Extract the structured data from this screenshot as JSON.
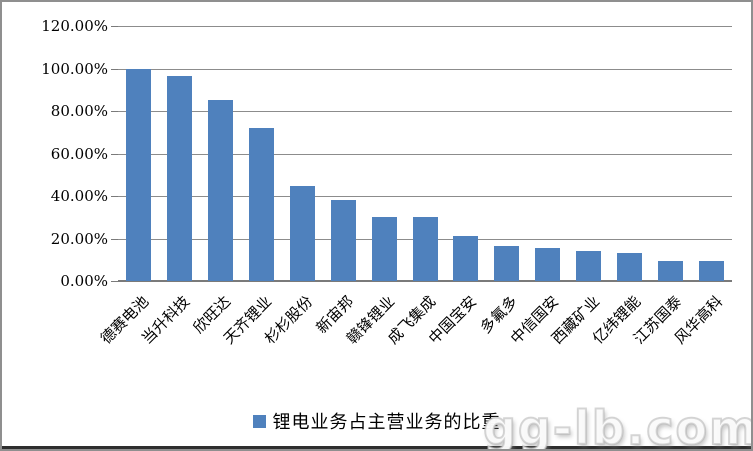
{
  "chart_data": {
    "type": "bar",
    "title": "",
    "categories": [
      "德赛电池",
      "当升科技",
      "欣旺达",
      "天齐锂业",
      "杉杉股份",
      "新宙邦",
      "赣锋锂业",
      "成飞集成",
      "中国宝安",
      "多氟多",
      "中信国安",
      "西藏矿业",
      "亿纬锂能",
      "江苏国泰",
      "风华高科"
    ],
    "values": [
      100.0,
      96.5,
      85.0,
      72.0,
      44.5,
      38.0,
      30.0,
      30.0,
      21.0,
      16.5,
      15.5,
      14.0,
      13.0,
      9.6,
      9.6
    ],
    "series_name": "锂电业务占主营业务的比重",
    "xlabel": "",
    "ylabel": "",
    "ylim": [
      0,
      120
    ],
    "y_tick_values": [
      120,
      100,
      80,
      60,
      40,
      20,
      0
    ],
    "y_tick_labels": [
      "120.00%",
      "100.00%",
      "80.00%",
      "60.00%",
      "40.00%",
      "20.00%",
      "0.00%"
    ],
    "grid": true,
    "legend_position": "bottom",
    "bar_color": "#4F81BD",
    "gridline_color": "#8C8C8C",
    "axis_text_color": "#000000"
  },
  "watermark": {
    "text": "gg-lb.com"
  }
}
